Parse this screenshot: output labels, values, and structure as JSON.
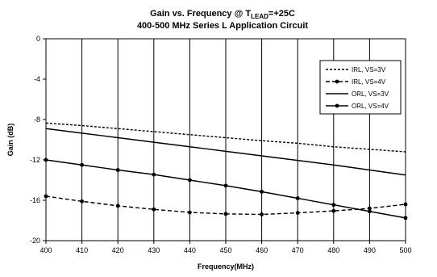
{
  "chart_data": {
    "type": "line",
    "title_prefix": "Gain vs. Frequency @ T",
    "title_subscript": "LEAD",
    "title_suffix": "=+25C",
    "subtitle": "400-500 MHz Series L Application Circuit",
    "xlabel": "Frequency(MHz)",
    "ylabel": "Gain (dB)",
    "xlim": [
      400,
      500
    ],
    "ylim": [
      -20,
      0
    ],
    "x_ticks": [
      "400",
      "410",
      "420",
      "430",
      "440",
      "450",
      "460",
      "470",
      "480",
      "490",
      "500"
    ],
    "y_ticks": [
      "0",
      "-4",
      "-8",
      "-12",
      "-16",
      "-20"
    ],
    "grid": "vertical",
    "legend_position": "top-right",
    "x": [
      400,
      410,
      420,
      430,
      440,
      450,
      460,
      470,
      480,
      490,
      500
    ],
    "series": [
      {
        "name": "IRL, VS=3V",
        "style": "dotted",
        "marker": false,
        "values": [
          -8.35,
          -8.6,
          -8.9,
          -9.2,
          -9.5,
          -9.8,
          -10.1,
          -10.35,
          -10.7,
          -10.95,
          -11.2
        ]
      },
      {
        "name": "IRL, VS=4V",
        "style": "dashed",
        "marker": true,
        "values": [
          -15.6,
          -16.1,
          -16.55,
          -16.9,
          -17.2,
          -17.35,
          -17.4,
          -17.25,
          -17.05,
          -16.8,
          -16.4
        ]
      },
      {
        "name": "ORL, VS=3V",
        "style": "solid",
        "marker": false,
        "values": [
          -8.9,
          -9.35,
          -9.8,
          -10.25,
          -10.7,
          -11.15,
          -11.6,
          -12.05,
          -12.5,
          -13.0,
          -13.5
        ]
      },
      {
        "name": "ORL, VS=4V",
        "style": "solid",
        "marker": true,
        "values": [
          -12.0,
          -12.5,
          -13.0,
          -13.45,
          -14.0,
          -14.55,
          -15.15,
          -15.8,
          -16.45,
          -17.1,
          -17.75
        ]
      }
    ]
  }
}
